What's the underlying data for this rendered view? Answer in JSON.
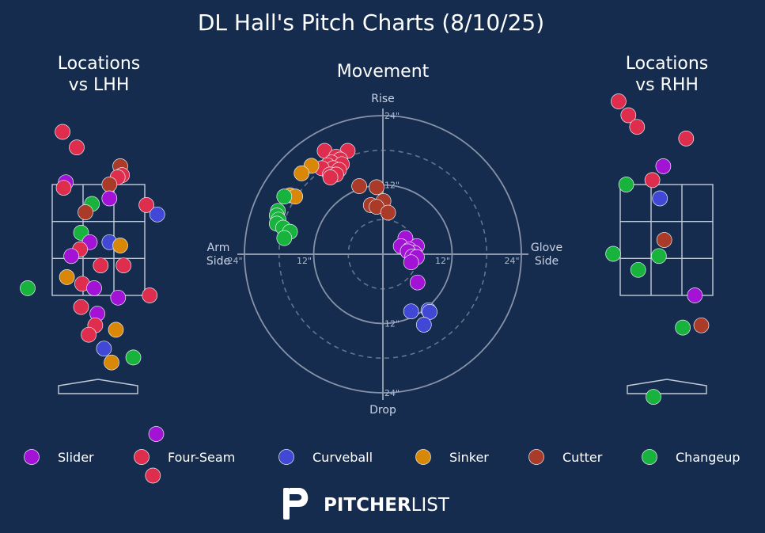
{
  "chart_data": {
    "type": "scatter",
    "title": "DL Hall's Pitch Charts (8/10/25)",
    "pitch_types": [
      {
        "name": "Slider",
        "color": "#a313d6"
      },
      {
        "name": "Four-Seam",
        "color": "#df2e4d"
      },
      {
        "name": "Curveball",
        "color": "#4148d6"
      },
      {
        "name": "Sinker",
        "color": "#d88707"
      },
      {
        "name": "Cutter",
        "color": "#a93b28"
      },
      {
        "name": "Changeup",
        "color": "#17b33d"
      }
    ],
    "panels": {
      "lhh": {
        "title_line1": "Locations",
        "title_line2": "vs LHH",
        "pitches": [
          {
            "type": "Four-Seam",
            "x": -1.65,
            "z": 4.45
          },
          {
            "type": "Four-Seam",
            "x": -1.0,
            "z": 4.17
          },
          {
            "type": "Cutter",
            "x": 1.0,
            "z": 3.83
          },
          {
            "type": "Four-Seam",
            "x": 1.08,
            "z": 3.67
          },
          {
            "type": "Four-Seam",
            "x": 0.88,
            "z": 3.63
          },
          {
            "type": "Cutter",
            "x": 0.5,
            "z": 3.5
          },
          {
            "type": "Slider",
            "x": -1.5,
            "z": 3.54
          },
          {
            "type": "Four-Seam",
            "x": -1.6,
            "z": 3.44
          },
          {
            "type": "Slider",
            "x": 0.5,
            "z": 3.25
          },
          {
            "type": "Changeup",
            "x": -0.3,
            "z": 3.15
          },
          {
            "type": "Cutter",
            "x": -0.6,
            "z": 3.0
          },
          {
            "type": "Four-Seam",
            "x": 2.2,
            "z": 3.13
          },
          {
            "type": "Curveball",
            "x": 2.7,
            "z": 2.96
          },
          {
            "type": "Changeup",
            "x": -0.8,
            "z": 2.63
          },
          {
            "type": "Curveball",
            "x": 0.5,
            "z": 2.46
          },
          {
            "type": "Slider",
            "x": -0.4,
            "z": 2.46
          },
          {
            "type": "Sinker",
            "x": 1.0,
            "z": 2.4
          },
          {
            "type": "Four-Seam",
            "x": -0.85,
            "z": 2.33
          },
          {
            "type": "Slider",
            "x": -1.25,
            "z": 2.21
          },
          {
            "type": "Four-Seam",
            "x": 0.1,
            "z": 2.04
          },
          {
            "type": "Four-Seam",
            "x": 1.15,
            "z": 2.04
          },
          {
            "type": "Sinker",
            "x": -1.45,
            "z": 1.83
          },
          {
            "type": "Four-Seam",
            "x": -0.75,
            "z": 1.71
          },
          {
            "type": "Slider",
            "x": -0.2,
            "z": 1.63
          },
          {
            "type": "Changeup",
            "x": -3.25,
            "z": 1.63
          },
          {
            "type": "Slider",
            "x": 0.9,
            "z": 1.46
          },
          {
            "type": "Four-Seam",
            "x": 2.35,
            "z": 1.5
          },
          {
            "type": "Four-Seam",
            "x": -0.8,
            "z": 1.29
          },
          {
            "type": "Slider",
            "x": -0.05,
            "z": 1.17
          },
          {
            "type": "Four-Seam",
            "x": -0.15,
            "z": 0.96
          },
          {
            "type": "Sinker",
            "x": 0.8,
            "z": 0.88
          },
          {
            "type": "Four-Seam",
            "x": -0.45,
            "z": 0.79
          },
          {
            "type": "Curveball",
            "x": 0.25,
            "z": 0.54
          },
          {
            "type": "Changeup",
            "x": 1.6,
            "z": 0.38
          },
          {
            "type": "Sinker",
            "x": 0.6,
            "z": 0.29
          },
          {
            "type": "Slider",
            "x": 2.65,
            "z": -1.0
          },
          {
            "type": "Four-Seam",
            "x": 2.5,
            "z": -1.75
          }
        ]
      },
      "movement": {
        "title": "Movement",
        "axis_top": "Rise",
        "axis_bottom": "Drop",
        "axis_left_line1": "Arm",
        "axis_left_line2": "Side",
        "axis_right_line1": "Glove",
        "axis_right_line2": "Side",
        "ring_unit": "\"",
        "rings_solid": [
          12,
          24
        ],
        "rings_dashed": [
          6,
          18
        ],
        "ring_labels": [
          {
            "text": "24\"",
            "x": 0,
            "y": 24
          },
          {
            "text": "12\"",
            "x": 0,
            "y": 12
          },
          {
            "text": "12\"",
            "x": 0,
            "y": -12
          },
          {
            "text": "24\"",
            "x": 0,
            "y": -24
          },
          {
            "text": "24\"",
            "x": -24,
            "y": 0
          },
          {
            "text": "12\"",
            "x": -12,
            "y": 0
          },
          {
            "text": "12\"",
            "x": 12,
            "y": 0
          },
          {
            "text": "24\"",
            "x": 24,
            "y": 0
          }
        ],
        "pitches": [
          {
            "type": "Four-Seam",
            "x": -10.1,
            "y": 17.9
          },
          {
            "type": "Four-Seam",
            "x": -6.1,
            "y": 17.9
          },
          {
            "type": "Four-Seam",
            "x": -8.1,
            "y": 16.9
          },
          {
            "type": "Four-Seam",
            "x": -7.4,
            "y": 16.4
          },
          {
            "type": "Four-Seam",
            "x": -8.9,
            "y": 15.9
          },
          {
            "type": "Four-Seam",
            "x": -7.1,
            "y": 15.6
          },
          {
            "type": "Four-Seam",
            "x": -9.6,
            "y": 15.4
          },
          {
            "type": "Four-Seam",
            "x": -8.6,
            "y": 14.9
          },
          {
            "type": "Four-Seam",
            "x": -7.6,
            "y": 14.6
          },
          {
            "type": "Four-Seam",
            "x": -10.6,
            "y": 14.9
          },
          {
            "type": "Four-Seam",
            "x": -9.2,
            "y": 13.8
          },
          {
            "type": "Four-Seam",
            "x": -8.1,
            "y": 13.8
          },
          {
            "type": "Four-Seam",
            "x": -9.1,
            "y": 13.3
          },
          {
            "type": "Sinker",
            "x": -12.4,
            "y": 15.3
          },
          {
            "type": "Sinker",
            "x": -14.1,
            "y": 14.0
          },
          {
            "type": "Sinker",
            "x": -16.1,
            "y": 10.2
          },
          {
            "type": "Sinker",
            "x": -15.2,
            "y": 10.0
          },
          {
            "type": "Changeup",
            "x": -17.1,
            "y": 10.0
          },
          {
            "type": "Changeup",
            "x": -18.2,
            "y": 7.5
          },
          {
            "type": "Changeup",
            "x": -18.4,
            "y": 6.7
          },
          {
            "type": "Changeup",
            "x": -18.1,
            "y": 6.0
          },
          {
            "type": "Changeup",
            "x": -18.4,
            "y": 5.3
          },
          {
            "type": "Changeup",
            "x": -17.3,
            "y": 4.6
          },
          {
            "type": "Changeup",
            "x": -16.1,
            "y": 3.9
          },
          {
            "type": "Changeup",
            "x": -17.1,
            "y": 2.8
          },
          {
            "type": "Cutter",
            "x": -4.1,
            "y": 11.8
          },
          {
            "type": "Cutter",
            "x": -1.1,
            "y": 11.6
          },
          {
            "type": "Cutter",
            "x": 0.1,
            "y": 9.2
          },
          {
            "type": "Cutter",
            "x": -2.1,
            "y": 8.5
          },
          {
            "type": "Cutter",
            "x": -1.1,
            "y": 8.2
          },
          {
            "type": "Cutter",
            "x": 0.9,
            "y": 7.2
          },
          {
            "type": "Slider",
            "x": 3.9,
            "y": 2.8
          },
          {
            "type": "Slider",
            "x": 5.9,
            "y": 1.4
          },
          {
            "type": "Slider",
            "x": 3.1,
            "y": 1.4
          },
          {
            "type": "Slider",
            "x": 4.6,
            "y": 0.8
          },
          {
            "type": "Slider",
            "x": 5.5,
            "y": 0.2
          },
          {
            "type": "Slider",
            "x": 4.3,
            "y": 0.5
          },
          {
            "type": "Slider",
            "x": 5.1,
            "y": -0.4
          },
          {
            "type": "Slider",
            "x": 5.9,
            "y": -0.5
          },
          {
            "type": "Slider",
            "x": 4.9,
            "y": -1.4
          },
          {
            "type": "Slider",
            "x": 6.0,
            "y": -4.9
          },
          {
            "type": "Curveball",
            "x": 7.9,
            "y": -9.7
          },
          {
            "type": "Curveball",
            "x": 4.9,
            "y": -9.9
          },
          {
            "type": "Curveball",
            "x": 8.1,
            "y": -10.0
          },
          {
            "type": "Curveball",
            "x": 7.1,
            "y": -12.2
          }
        ]
      },
      "rhh": {
        "title_line1": "Locations",
        "title_line2": "vs RHH",
        "pitches": [
          {
            "type": "Four-Seam",
            "x": -2.2,
            "z": 5.0
          },
          {
            "type": "Four-Seam",
            "x": -1.75,
            "z": 4.75
          },
          {
            "type": "Four-Seam",
            "x": -1.35,
            "z": 4.54
          },
          {
            "type": "Four-Seam",
            "x": 0.9,
            "z": 4.33
          },
          {
            "type": "Slider",
            "x": -0.15,
            "z": 3.83
          },
          {
            "type": "Four-Seam",
            "x": -0.65,
            "z": 3.58
          },
          {
            "type": "Changeup",
            "x": -1.85,
            "z": 3.5
          },
          {
            "type": "Curveball",
            "x": -0.3,
            "z": 3.25
          },
          {
            "type": "Cutter",
            "x": -0.1,
            "z": 2.5
          },
          {
            "type": "Changeup",
            "x": -2.45,
            "z": 2.25
          },
          {
            "type": "Changeup",
            "x": -0.35,
            "z": 2.21
          },
          {
            "type": "Changeup",
            "x": -1.3,
            "z": 1.96
          },
          {
            "type": "Slider",
            "x": 1.3,
            "z": 1.5
          },
          {
            "type": "Changeup",
            "x": 0.75,
            "z": 0.92
          },
          {
            "type": "Cutter",
            "x": 1.6,
            "z": 0.96
          },
          {
            "type": "Changeup",
            "x": -0.6,
            "z": -0.33
          }
        ]
      }
    },
    "legend": {
      "placement": "bottom",
      "entries": [
        "Slider",
        "Four-Seam",
        "Curveball",
        "Sinker",
        "Cutter",
        "Changeup"
      ]
    }
  },
  "brand": {
    "bold": "PITCHER",
    "light": "LIST"
  }
}
